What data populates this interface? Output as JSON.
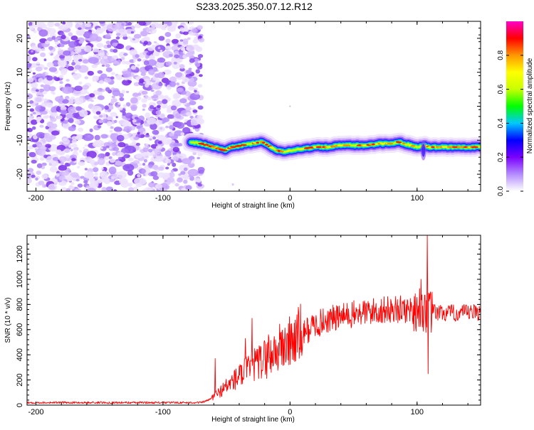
{
  "page": {
    "title": "S233.2025.350.07.12.R12"
  },
  "chart_data": [
    {
      "type": "heatmap",
      "name": "spectrogram",
      "xlabel": "Height of straight line (km)",
      "ylabel": "Frequency (Hz)",
      "xlim": [
        -207,
        150
      ],
      "ylim": [
        -25,
        25
      ],
      "xticks": [
        -200,
        -100,
        0,
        100
      ],
      "yticks": [
        20,
        10,
        0,
        -10,
        -20
      ],
      "noise_region_x": [
        -207,
        -73
      ],
      "ridge": {
        "x": [
          -78,
          -70,
          -60,
          -52,
          -45,
          -38,
          -30,
          -22,
          -15,
          -10,
          -5,
          0,
          10,
          20,
          30,
          40,
          50,
          60,
          70,
          80,
          85,
          90,
          95,
          100,
          105,
          110,
          120,
          130,
          140,
          150
        ],
        "freq": [
          -10.5,
          -11,
          -12,
          -13,
          -12,
          -11.5,
          -11,
          -10.5,
          -12,
          -13,
          -13.5,
          -13,
          -12.5,
          -12,
          -12,
          -11.5,
          -11.5,
          -11.5,
          -11,
          -11,
          -10.5,
          -11,
          -11.5,
          -12,
          -11.5,
          -12,
          -12,
          -12,
          -12,
          -12
        ]
      },
      "colorbar": {
        "label": "Normalized spectral amplitude",
        "range": [
          0,
          1
        ],
        "ticks": [
          "0.0",
          "0.2",
          "0.4",
          "0.6",
          "0.8"
        ],
        "colors": [
          "#ffffff",
          "#b48cff",
          "#7b00ff",
          "#0000ff",
          "#00c8ff",
          "#00ff00",
          "#c8ff00",
          "#ffff00",
          "#ff9600",
          "#ff0000",
          "#ff00c8"
        ]
      }
    },
    {
      "type": "line",
      "name": "snr",
      "xlabel": "Height of straight line (km)",
      "ylabel": "SNR (10 * v/v)",
      "xlim": [
        -207,
        150
      ],
      "ylim": [
        0,
        1350
      ],
      "xticks": [
        -200,
        -100,
        0,
        100
      ],
      "yticks": [
        0,
        200,
        400,
        600,
        800,
        1000,
        1200
      ],
      "color": "#ff0000",
      "trend": {
        "x": [
          -207,
          -70,
          -64,
          -60,
          -50,
          -40,
          -30,
          -20,
          -10,
          0,
          10,
          20,
          30,
          40,
          50,
          60,
          70,
          80,
          90,
          100,
          105,
          110,
          120,
          130,
          140,
          150
        ],
        "y": [
          20,
          20,
          40,
          70,
          150,
          230,
          300,
          370,
          440,
          500,
          570,
          640,
          680,
          700,
          720,
          740,
          750,
          760,
          760,
          760,
          760,
          740,
          730,
          730,
          730,
          740
        ]
      },
      "spikes": [
        {
          "x": -59,
          "y": 370
        },
        {
          "x": -35,
          "y": 530
        },
        {
          "x": -30,
          "y": 690
        },
        {
          "x": -17,
          "y": 560
        },
        {
          "x": 103,
          "y": 1000
        },
        {
          "x": 108,
          "y": 1350
        },
        {
          "x": 108.6,
          "y": 250
        }
      ]
    }
  ]
}
